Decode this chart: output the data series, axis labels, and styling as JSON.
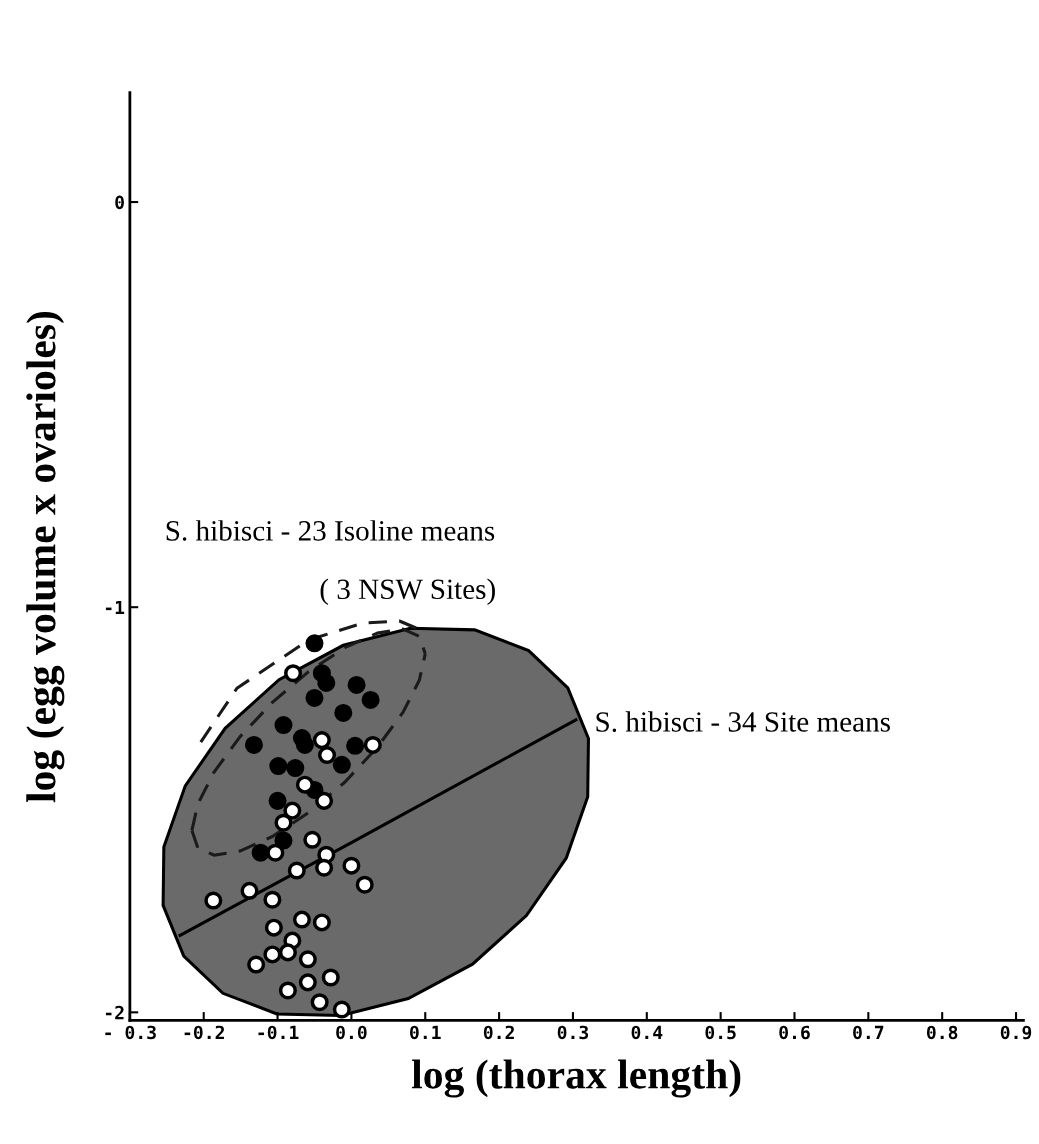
{
  "chart_data": {
    "type": "scatter",
    "xlabel": "log (thorax length)",
    "ylabel": "log (egg volume x ovarioles)",
    "xlim": [
      -0.3,
      0.91
    ],
    "ylim": [
      -2.02,
      0.27
    ],
    "xticks": [
      {
        "value": -0.3,
        "label": "- 0.3"
      },
      {
        "value": -0.2,
        "label": "-0.2"
      },
      {
        "value": -0.1,
        "label": "-0.1"
      },
      {
        "value": 0.0,
        "label": "0.0"
      },
      {
        "value": 0.1,
        "label": "0.1"
      },
      {
        "value": 0.2,
        "label": "0.2"
      },
      {
        "value": 0.3,
        "label": "0.3"
      },
      {
        "value": 0.4,
        "label": "0.4"
      },
      {
        "value": 0.5,
        "label": "0.5"
      },
      {
        "value": 0.6,
        "label": "0.6"
      },
      {
        "value": 0.7,
        "label": "0.7"
      },
      {
        "value": 0.8,
        "label": "0.8"
      },
      {
        "value": 0.9,
        "label": "0.9"
      }
    ],
    "yticks": [
      {
        "value": 0,
        "label": "0"
      },
      {
        "value": -1,
        "label": "-1"
      },
      {
        "value": -2,
        "label": "-2"
      }
    ],
    "grid": false,
    "legend": false,
    "annotations": [
      "S. hibisci - 23 Isoline means",
      "( 3 NSW Sites)",
      "S. hibisci - 34 Site means"
    ],
    "series": [
      {
        "type": "area",
        "color": "#6a6a6a",
        "x": [
          0.32,
          0.321,
          0.293,
          0.24,
          0.167,
          0.08,
          -0.011,
          -0.098,
          -0.171,
          -0.225,
          -0.254,
          -0.255,
          -0.227,
          -0.174,
          -0.101,
          -0.014,
          0.077,
          0.164,
          0.237,
          0.291,
          0.32
        ],
        "values": [
          -1.468,
          -1.324,
          -1.199,
          -1.107,
          -1.056,
          -1.052,
          -1.094,
          -1.179,
          -1.299,
          -1.441,
          -1.592,
          -1.736,
          -1.861,
          -1.953,
          -2.004,
          -2.008,
          -1.966,
          -1.881,
          -1.761,
          -1.619,
          -1.468
        ]
      },
      {
        "type": "line",
        "line_style": "dashed",
        "marker": "none",
        "color": "#1a1a1a",
        "x": [
          -0.216,
          -0.208,
          -0.186,
          -0.151,
          -0.107,
          -0.058,
          -0.009,
          0.035,
          0.07,
          0.092,
          0.1
        ],
        "values": [
          -1.551,
          -1.486,
          -1.407,
          -1.32,
          -1.235,
          -1.159,
          -1.1,
          -1.064,
          -1.054,
          -1.072,
          -1.115
        ]
      },
      {
        "type": "line",
        "line_style": "dashed",
        "marker": "none",
        "color": "#1a1a1a",
        "x": [
          -0.216,
          -0.208,
          -0.186,
          -0.151,
          -0.107,
          -0.058,
          -0.009,
          0.035,
          0.07,
          0.092,
          0.1
        ],
        "values": [
          -1.551,
          -1.594,
          -1.612,
          -1.602,
          -1.566,
          -1.507,
          -1.432,
          -1.346,
          -1.259,
          -1.18,
          -1.115
        ]
      },
      {
        "type": "line",
        "line_style": "dashed",
        "marker": "none",
        "color": "#1a1a1a",
        "x": [
          -0.204,
          -0.155,
          -0.058,
          0.016,
          0.065,
          0.095
        ],
        "values": [
          -1.333,
          -1.2,
          -1.081,
          -1.039,
          -1.034,
          -1.057
        ]
      },
      {
        "type": "line",
        "line_style": "solid",
        "marker": "none",
        "color": "#000000",
        "x": [
          -0.232,
          0.0,
          0.304
        ],
        "values": [
          -1.81,
          -1.581,
          -1.278
        ]
      },
      {
        "marker": "circle",
        "color": "#000000",
        "x": [
          -0.05,
          -0.04,
          -0.034,
          0.007,
          -0.05,
          0.026,
          -0.011,
          -0.092,
          -0.067,
          -0.132,
          -0.063,
          0.005,
          -0.099,
          -0.076,
          -0.013,
          -0.05,
          -0.1,
          -0.092,
          -0.123
        ],
        "values": [
          -1.089,
          -1.163,
          -1.187,
          -1.192,
          -1.224,
          -1.229,
          -1.261,
          -1.291,
          -1.323,
          -1.34,
          -1.34,
          -1.342,
          -1.392,
          -1.397,
          -1.389,
          -1.451,
          -1.478,
          -1.576,
          -1.606
        ]
      },
      {
        "marker": "circle",
        "color": "#ffffff",
        "x": [
          -0.079,
          -0.04,
          0.029,
          -0.033,
          -0.063,
          -0.037,
          -0.08,
          -0.092,
          -0.053,
          -0.103,
          -0.034,
          -0.037,
          -0.074,
          0.0,
          -0.138,
          0.018,
          -0.187,
          -0.107,
          -0.067,
          -0.04,
          -0.105,
          -0.08,
          -0.086,
          -0.107,
          -0.059,
          -0.129,
          -0.028,
          -0.059,
          -0.086,
          -0.043,
          -0.013
        ],
        "values": [
          -1.163,
          -1.328,
          -1.34,
          -1.365,
          -1.438,
          -1.478,
          -1.502,
          -1.532,
          -1.574,
          -1.606,
          -1.611,
          -1.643,
          -1.65,
          -1.638,
          -1.7,
          -1.685,
          -1.724,
          -1.722,
          -1.771,
          -1.778,
          -1.791,
          -1.823,
          -1.852,
          -1.857,
          -1.869,
          -1.882,
          -1.914,
          -1.926,
          -1.946,
          -1.975,
          -1.993
        ]
      }
    ]
  }
}
